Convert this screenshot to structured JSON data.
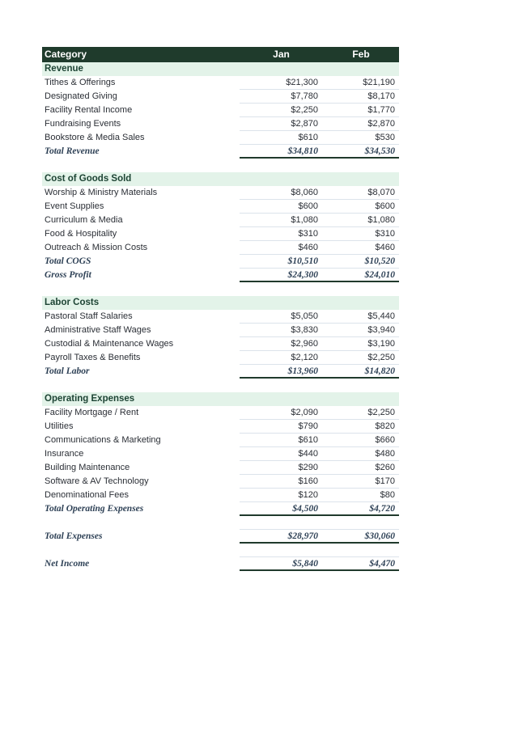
{
  "colors": {
    "header_bg": "#1f3b2c",
    "header_text": "#ffffff",
    "section_band_bg": "#e3f3e9",
    "section_band_text": "#1d4434",
    "body_text": "#2b2f36",
    "total_text": "#2e4156",
    "faint_rule": "#dce3eb",
    "dark_rule": "#203a2c",
    "page_bg": "#ffffff"
  },
  "table": {
    "header": {
      "category": "Category",
      "jan": "Jan",
      "feb": "Feb"
    },
    "rows": [
      {
        "type": "band",
        "label": "Revenue"
      },
      {
        "type": "data",
        "label": "Tithes & Offerings",
        "jan": "$21,300",
        "feb": "$21,190"
      },
      {
        "type": "data",
        "label": "Designated Giving",
        "jan": "$7,780",
        "feb": "$8,170"
      },
      {
        "type": "data",
        "label": "Facility Rental Income",
        "jan": "$2,250",
        "feb": "$1,770"
      },
      {
        "type": "data",
        "label": "Fundraising Events",
        "jan": "$2,870",
        "feb": "$2,870"
      },
      {
        "type": "data",
        "label": "Bookstore & Media Sales",
        "jan": "$610",
        "feb": "$530"
      },
      {
        "type": "total",
        "label": "Total Revenue",
        "jan": "$34,810",
        "feb": "$34,530"
      },
      {
        "type": "spacer"
      },
      {
        "type": "band",
        "label": "Cost of Goods Sold"
      },
      {
        "type": "data",
        "label": "Worship & Ministry Materials",
        "jan": "$8,060",
        "feb": "$8,070"
      },
      {
        "type": "data",
        "label": "Event Supplies",
        "jan": "$600",
        "feb": "$600"
      },
      {
        "type": "data",
        "label": "Curriculum & Media",
        "jan": "$1,080",
        "feb": "$1,080"
      },
      {
        "type": "data",
        "label": "Food & Hospitality",
        "jan": "$310",
        "feb": "$310"
      },
      {
        "type": "data",
        "label": "Outreach & Mission Costs",
        "jan": "$460",
        "feb": "$460"
      },
      {
        "type": "total",
        "label": "Total COGS",
        "jan": "$10,510",
        "feb": "$10,520"
      },
      {
        "type": "total",
        "label": "Gross Profit",
        "jan": "$24,300",
        "feb": "$24,010"
      },
      {
        "type": "spacer"
      },
      {
        "type": "band",
        "label": "Labor Costs"
      },
      {
        "type": "data",
        "label": "Pastoral Staff Salaries",
        "jan": "$5,050",
        "feb": "$5,440"
      },
      {
        "type": "data",
        "label": "Administrative Staff Wages",
        "jan": "$3,830",
        "feb": "$3,940"
      },
      {
        "type": "data",
        "label": "Custodial & Maintenance Wages",
        "jan": "$2,960",
        "feb": "$3,190"
      },
      {
        "type": "data",
        "label": "Payroll Taxes & Benefits",
        "jan": "$2,120",
        "feb": "$2,250"
      },
      {
        "type": "total",
        "label": "Total Labor",
        "jan": "$13,960",
        "feb": "$14,820"
      },
      {
        "type": "spacer"
      },
      {
        "type": "band",
        "label": "Operating Expenses"
      },
      {
        "type": "data",
        "label": "Facility Mortgage / Rent",
        "jan": "$2,090",
        "feb": "$2,250"
      },
      {
        "type": "data",
        "label": "Utilities",
        "jan": "$790",
        "feb": "$820"
      },
      {
        "type": "data",
        "label": "Communications & Marketing",
        "jan": "$610",
        "feb": "$660"
      },
      {
        "type": "data",
        "label": "Insurance",
        "jan": "$440",
        "feb": "$480"
      },
      {
        "type": "data",
        "label": "Building Maintenance",
        "jan": "$290",
        "feb": "$260"
      },
      {
        "type": "data",
        "label": "Software & AV Technology",
        "jan": "$160",
        "feb": "$170"
      },
      {
        "type": "data",
        "label": "Denominational Fees",
        "jan": "$120",
        "feb": "$80"
      },
      {
        "type": "total",
        "label": "Total Operating Expenses",
        "jan": "$4,500",
        "feb": "$4,720"
      },
      {
        "type": "spacer"
      },
      {
        "type": "total",
        "label": "Total Expenses",
        "jan": "$28,970",
        "feb": "$30,060"
      },
      {
        "type": "spacer"
      },
      {
        "type": "total",
        "label": "Net Income",
        "jan": "$5,840",
        "feb": "$4,470"
      }
    ]
  }
}
